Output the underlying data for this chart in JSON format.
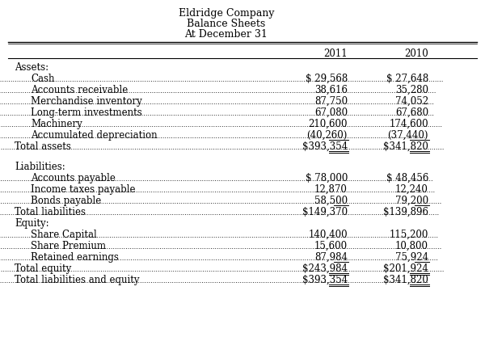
{
  "title_lines": [
    "Eldridge Company",
    "Balance Sheets",
    "At December 31"
  ],
  "col_headers": [
    "2011",
    "2010"
  ],
  "sections": [
    {
      "header": "Assets:",
      "header_indent": 0.03,
      "rows": [
        {
          "label": "Cash",
          "val2011": "$ 29,568",
          "val2010": "$ 27,648",
          "indent": 1,
          "underline": false,
          "double_underline": false
        },
        {
          "label": "Accounts receivable",
          "val2011": "38,616",
          "val2010": "35,280",
          "indent": 1,
          "underline": false,
          "double_underline": false
        },
        {
          "label": "Merchandise inventory",
          "val2011": "87,750",
          "val2010": "74,052",
          "indent": 1,
          "underline": false,
          "double_underline": false
        },
        {
          "label": "Long-term investments",
          "val2011": "67,080",
          "val2010": "67,680",
          "indent": 1,
          "underline": false,
          "double_underline": false
        },
        {
          "label": "Machinery",
          "val2011": "210,600",
          "val2010": "174,600",
          "indent": 1,
          "underline": false,
          "double_underline": false
        },
        {
          "label": "Accumulated depreciation",
          "val2011": "(40,260)",
          "val2010": "(37,440)",
          "indent": 1,
          "underline": true,
          "double_underline": false
        },
        {
          "label": "Total assets",
          "val2011": "$393,354",
          "val2010": "$341,820",
          "indent": 0,
          "underline": false,
          "double_underline": true
        }
      ],
      "gap_after": true
    },
    {
      "header": "Liabilities:",
      "header_indent": 0.03,
      "rows": [
        {
          "label": "Accounts payable",
          "val2011": "$ 78,000",
          "val2010": "$ 48,456",
          "indent": 1,
          "underline": false,
          "double_underline": false
        },
        {
          "label": "Income taxes payable",
          "val2011": "12,870",
          "val2010": "12,240",
          "indent": 1,
          "underline": false,
          "double_underline": false
        },
        {
          "label": "Bonds payable",
          "val2011": "58,500",
          "val2010": "79,200",
          "indent": 1,
          "underline": true,
          "double_underline": false
        },
        {
          "label": "Total liabilities",
          "val2011": "$149,370",
          "val2010": "$139,896",
          "indent": 0,
          "underline": false,
          "double_underline": false
        }
      ],
      "gap_after": false
    },
    {
      "header": "Equity:",
      "header_indent": 0.03,
      "rows": [
        {
          "label": "Share Capital",
          "val2011": "140,400",
          "val2010": "115,200",
          "indent": 1,
          "underline": false,
          "double_underline": false
        },
        {
          "label": "Share Premium",
          "val2011": "15,600",
          "val2010": "10,800",
          "indent": 1,
          "underline": false,
          "double_underline": false
        },
        {
          "label": "Retained earnings",
          "val2011": "87,984",
          "val2010": "75,924",
          "indent": 1,
          "underline": true,
          "double_underline": false
        },
        {
          "label": "Total equity",
          "val2011": "$243,984",
          "val2010": "$201,924",
          "indent": 0,
          "underline": false,
          "double_underline": true
        },
        {
          "label": "Total liabilities and equity",
          "val2011": "$393,354",
          "val2010": "$341,820",
          "indent": 0,
          "underline": false,
          "double_underline": true
        }
      ],
      "gap_after": false
    }
  ],
  "bg_color": "#ffffff",
  "font_size": 8.5,
  "title_font_size": 9.0
}
